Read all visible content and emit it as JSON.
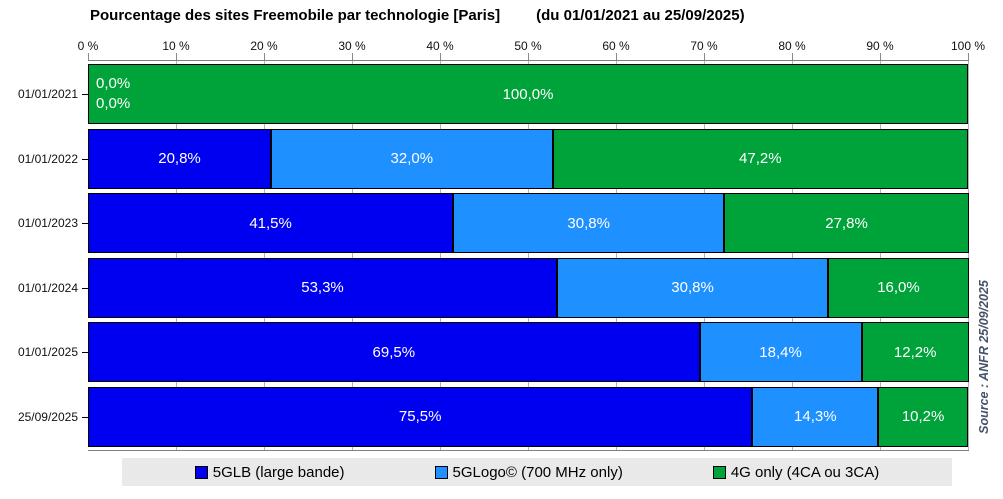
{
  "chart_data": {
    "type": "bar",
    "orientation": "horizontal-stacked",
    "title": "Pourcentage des sites Freemobile par technologie [Paris]",
    "subtitle": "(du 01/01/2021 au 25/09/2025)",
    "categories": [
      "01/01/2021",
      "01/01/2022",
      "01/01/2023",
      "01/01/2024",
      "01/01/2025",
      "25/09/2025"
    ],
    "series": [
      {
        "name": "5GLB (large bande)",
        "color": "#0000f0",
        "values": [
          0,
          20.8,
          41.5,
          53.3,
          69.5,
          75.5
        ],
        "labels": [
          "0,0%",
          "20,8%",
          "41,5%",
          "53,3%",
          "69,5%",
          "75,5%"
        ]
      },
      {
        "name": "5GLogo© (700 MHz only)",
        "color": "#1e90ff",
        "values": [
          0,
          32.0,
          30.8,
          30.8,
          18.4,
          14.3
        ],
        "labels": [
          "0,0%",
          "32,0%",
          "30,8%",
          "30,8%",
          "18,4%",
          "14,3%"
        ]
      },
      {
        "name": "4G only (4CA ou 3CA)",
        "color": "#00a33a",
        "values": [
          100,
          47.2,
          27.8,
          16.0,
          12.2,
          10.2
        ],
        "labels": [
          "100,0%",
          "47,2%",
          "27,8%",
          "16,0%",
          "12,2%",
          "10,2%"
        ]
      }
    ],
    "x_ticks": [
      "0 %",
      "10 %",
      "20 %",
      "30 %",
      "40 %",
      "50 %",
      "60 %",
      "70 %",
      "80 %",
      "90 %",
      "100 %"
    ],
    "xlim": [
      0,
      100
    ],
    "grid": true,
    "legend_position": "bottom",
    "value_label_color": "#ffffff",
    "legend_background": "#e9e9e9",
    "source_note": "Source : ANFR 25/09/2025"
  }
}
